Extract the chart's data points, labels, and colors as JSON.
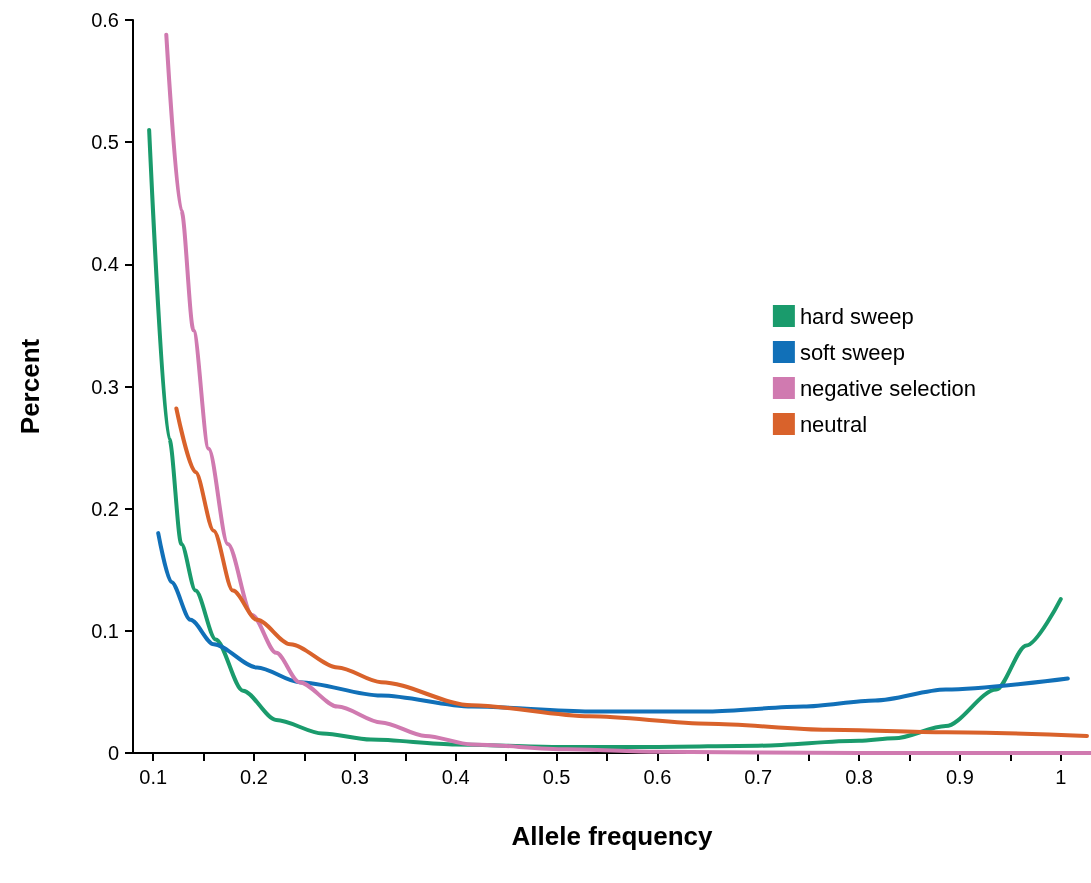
{
  "chart_data": {
    "type": "line",
    "xlabel": "Allele frequency",
    "ylabel": "Percent",
    "xlim": [
      0.08,
      1.03
    ],
    "ylim": [
      0,
      0.6
    ],
    "xticks": [
      {
        "value": 0.1,
        "label": "0.1"
      },
      {
        "value": 0.15,
        "label": null
      },
      {
        "value": 0.2,
        "label": "0.2"
      },
      {
        "value": 0.25,
        "label": null
      },
      {
        "value": 0.3,
        "label": "0.3"
      },
      {
        "value": 0.35,
        "label": null
      },
      {
        "value": 0.4,
        "label": "0.4"
      },
      {
        "value": 0.45,
        "label": null
      },
      {
        "value": 0.5,
        "label": "0.5"
      },
      {
        "value": 0.55,
        "label": null
      },
      {
        "value": 0.6,
        "label": "0.6"
      },
      {
        "value": 0.65,
        "label": null
      },
      {
        "value": 0.7,
        "label": "0.7"
      },
      {
        "value": 0.75,
        "label": null
      },
      {
        "value": 0.8,
        "label": "0.8"
      },
      {
        "value": 0.85,
        "label": null
      },
      {
        "value": 0.9,
        "label": "0.9"
      },
      {
        "value": 0.95,
        "label": null
      },
      {
        "value": 1,
        "label": "1"
      }
    ],
    "yticks": [
      0,
      0.1,
      0.2,
      0.3,
      0.4,
      0.5,
      0.6
    ],
    "grid": false,
    "legend": "right",
    "marker": "none",
    "line_style": "solid",
    "series": [
      {
        "name": "hard sweep",
        "color": "#1a9b6c",
        "x": [
          0.096,
          0.116,
          0.128,
          0.142,
          0.162,
          0.189,
          0.222,
          0.268,
          0.316,
          0.4,
          0.5,
          0.6,
          0.7,
          0.8,
          0.835,
          0.886,
          0.936,
          0.966,
          1.0
        ],
        "values": [
          0.51,
          0.257,
          0.171,
          0.133,
          0.093,
          0.051,
          0.027,
          0.016,
          0.011,
          0.007,
          0.005,
          0.005,
          0.006,
          0.01,
          0.012,
          0.022,
          0.052,
          0.088,
          0.126
        ]
      },
      {
        "name": "soft sweep",
        "color": "#1170b8",
        "x": [
          0.105,
          0.118,
          0.137,
          0.16,
          0.203,
          0.245,
          0.326,
          0.416,
          0.533,
          0.651,
          0.745,
          0.816,
          0.886,
          1.007
        ],
        "values": [
          0.18,
          0.14,
          0.109,
          0.089,
          0.07,
          0.058,
          0.047,
          0.038,
          0.034,
          0.034,
          0.038,
          0.043,
          0.052,
          0.061
        ]
      },
      {
        "name": "negative selection",
        "color": "#d07ab0",
        "x": [
          0.113,
          0.128,
          0.14,
          0.155,
          0.174,
          0.198,
          0.222,
          0.245,
          0.283,
          0.326,
          0.37,
          0.416,
          0.51,
          0.6,
          0.8,
          1.03
        ],
        "values": [
          0.588,
          0.444,
          0.346,
          0.249,
          0.171,
          0.113,
          0.082,
          0.058,
          0.038,
          0.025,
          0.014,
          0.007,
          0.003,
          0.001,
          0.0,
          0.0
        ]
      },
      {
        "name": "neutral",
        "color": "#d9622b",
        "x": [
          0.123,
          0.142,
          0.16,
          0.179,
          0.203,
          0.236,
          0.283,
          0.326,
          0.416,
          0.533,
          0.651,
          0.769,
          0.886,
          1.026
        ],
        "values": [
          0.282,
          0.23,
          0.182,
          0.133,
          0.109,
          0.089,
          0.07,
          0.058,
          0.039,
          0.03,
          0.024,
          0.019,
          0.017,
          0.014
        ]
      }
    ]
  }
}
